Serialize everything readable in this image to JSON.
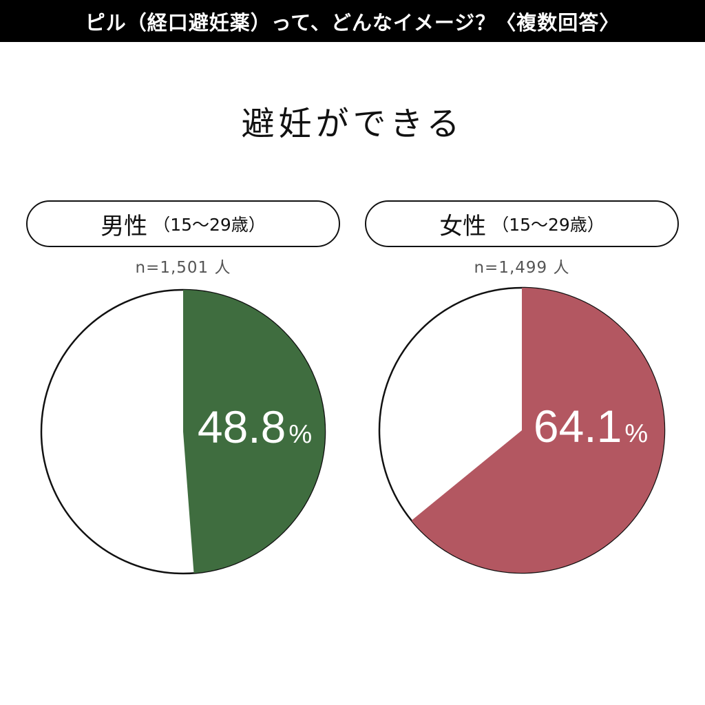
{
  "header": {
    "title": "ピル（経口避妊薬）って、どんなイメージ？〈複数回答〉"
  },
  "chart_data": {
    "type": "pie",
    "subtitle": "避妊ができる",
    "charts": [
      {
        "group_label": "男性",
        "age_range": "（15〜29歳）",
        "sample_size": "n=1,501 人",
        "value": 48.8,
        "value_text": "48.8",
        "unit": "%",
        "color": "#3f6d3f"
      },
      {
        "group_label": "女性",
        "age_range": "（15〜29歳）",
        "sample_size": "n=1,499 人",
        "value": 64.1,
        "value_text": "64.1",
        "unit": "%",
        "color": "#b35761"
      }
    ]
  }
}
